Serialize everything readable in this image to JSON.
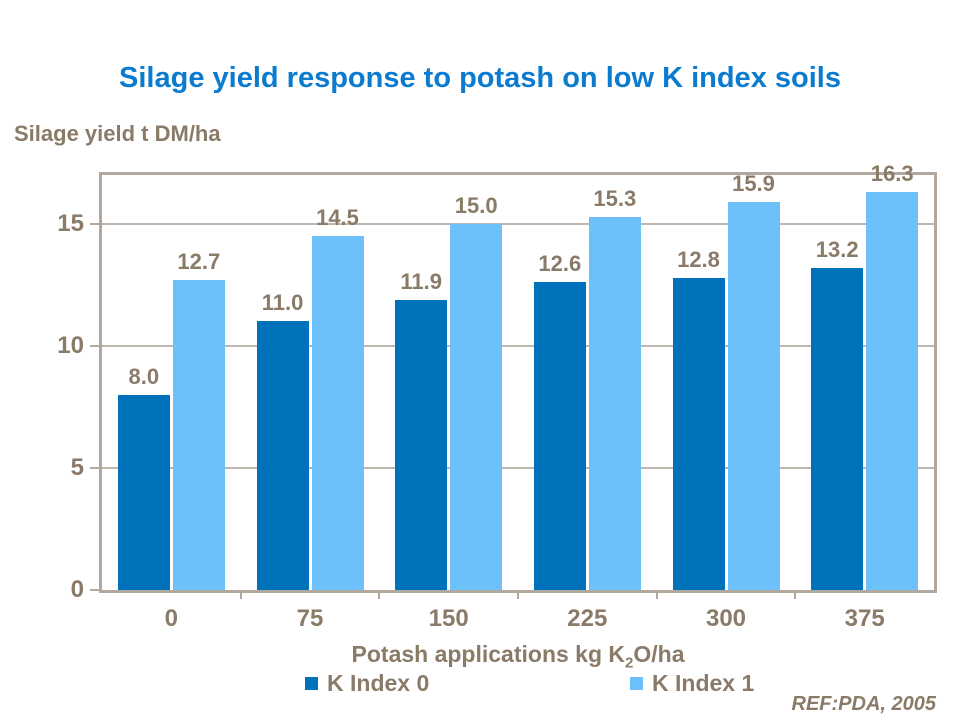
{
  "page": {
    "title": "Silage yield response to potash on low K index soils",
    "y_axis_unit_label": "Silage yield t DM/ha",
    "ref_note": "REF:PDA, 2005"
  },
  "colors": {
    "title_blue": "#0B7BD0",
    "series1_dark_blue": "#0072BC",
    "series2_light_blue": "#6EC0FB",
    "text_brown": "#8A7A68",
    "plot_border_taupe": "#B3A89E",
    "gridline_gray": "#BDB7B0"
  },
  "x_axis": {
    "label_prefix": "Potash applications kg K",
    "label_subscript": "2",
    "label_suffix": "O/ha"
  },
  "legend": {
    "entries": [
      {
        "label": "K Index 0",
        "color": "#0072BC"
      },
      {
        "label": "K Index 1",
        "color": "#6EC0FB"
      }
    ]
  },
  "chart_data": {
    "type": "bar",
    "title": "Silage yield response to potash on low K index soils",
    "categories": [
      "0",
      "75",
      "150",
      "225",
      "300",
      "375"
    ],
    "series": [
      {
        "name": "K Index 0",
        "color": "#0072BC",
        "values": [
          8.0,
          11.0,
          11.9,
          12.6,
          12.8,
          13.2
        ]
      },
      {
        "name": "K Index 1",
        "color": "#6EC0FB",
        "values": [
          12.7,
          14.5,
          15.0,
          15.3,
          15.9,
          16.3
        ]
      }
    ],
    "xlabel": "Potash applications kg K2O/ha",
    "ylabel": "Silage yield t DM/ha",
    "ylim": [
      0,
      17
    ],
    "yticks": [
      0,
      5,
      10,
      15
    ],
    "gridlines": [
      5,
      10,
      15
    ],
    "value_labels": true,
    "value_label_decimals": 1,
    "grid": true,
    "legend_position": "bottom"
  }
}
